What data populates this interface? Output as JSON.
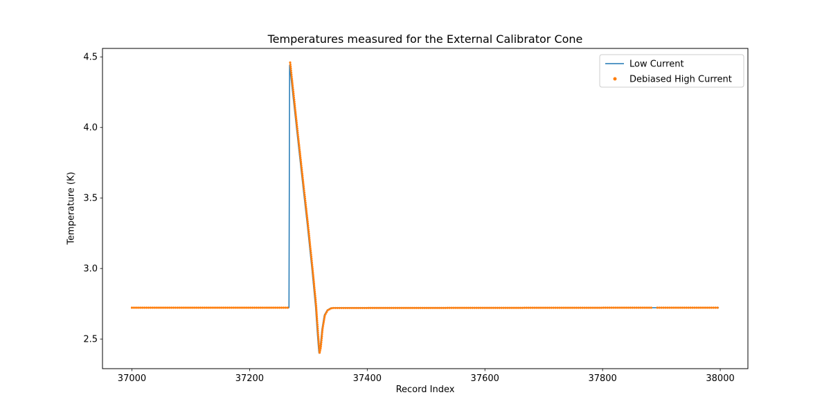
{
  "chart_data": {
    "type": "line",
    "title": "Temperatures measured for the External Calibrator Cone",
    "xlabel": "Record Index",
    "ylabel": "Temperature (K)",
    "xlim": [
      36950,
      38047
    ],
    "ylim": [
      2.29,
      4.56
    ],
    "xticks": [
      37000,
      37200,
      37400,
      37600,
      37800,
      38000
    ],
    "yticks": [
      2.5,
      3.0,
      3.5,
      4.0,
      4.5
    ],
    "grid": false,
    "background": "#ffffff",
    "legend": {
      "loc": "upper right",
      "frame": true,
      "frame_color": "#cccccc"
    },
    "series": [
      {
        "name": "Low Current",
        "color": "#1f77b4",
        "style": "line",
        "points": [
          [
            37000,
            2.722
          ],
          [
            37267,
            2.722
          ],
          [
            37268,
            4.44
          ],
          [
            37278,
            4.06
          ],
          [
            37288,
            3.68
          ],
          [
            37298,
            3.31
          ],
          [
            37306,
            2.99
          ],
          [
            37312,
            2.73
          ],
          [
            37315,
            2.55
          ],
          [
            37317,
            2.44
          ],
          [
            37318,
            2.4
          ],
          [
            37320,
            2.44
          ],
          [
            37323,
            2.57
          ],
          [
            37327,
            2.67
          ],
          [
            37332,
            2.705
          ],
          [
            37338,
            2.72
          ],
          [
            37345,
            2.722
          ],
          [
            37997,
            2.722
          ]
        ]
      },
      {
        "name": "Debiased High Current",
        "color": "#ff7f0e",
        "style": "scatter",
        "runs": [
          [
            [
              37000,
              2.722
            ],
            [
              37266,
              2.722
            ]
          ],
          [
            [
              37269,
              4.46
            ],
            [
              37279,
              4.07
            ],
            [
              37289,
              3.69
            ],
            [
              37299,
              3.32
            ],
            [
              37307,
              3.0
            ],
            [
              37313,
              2.74
            ],
            [
              37316,
              2.56
            ],
            [
              37318,
              2.45
            ],
            [
              37319,
              2.4
            ],
            [
              37321,
              2.44
            ],
            [
              37324,
              2.57
            ],
            [
              37328,
              2.67
            ],
            [
              37333,
              2.705
            ],
            [
              37340,
              2.72
            ],
            [
              37884,
              2.722
            ]
          ],
          [
            [
              37893,
              2.722
            ],
            [
              37997,
              2.722
            ]
          ]
        ]
      }
    ]
  }
}
